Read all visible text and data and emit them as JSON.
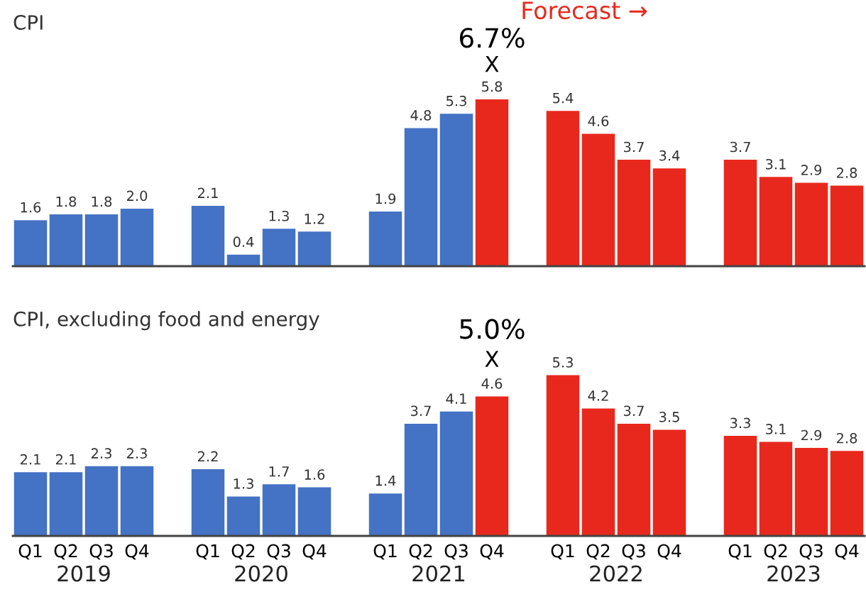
{
  "chart_data": [
    {
      "type": "bar",
      "title": "CPI",
      "categories": [
        null,
        null,
        null,
        null,
        null,
        null,
        null,
        null,
        null,
        null,
        null,
        null,
        null,
        null,
        null,
        null,
        null,
        null,
        null,
        null
      ],
      "values": [
        1.6,
        1.8,
        1.8,
        2.0,
        2.1,
        0.4,
        1.3,
        1.2,
        1.9,
        4.8,
        5.3,
        5.8,
        5.4,
        4.6,
        3.7,
        3.4,
        3.7,
        3.1,
        2.9,
        2.8
      ],
      "colors": [
        "#4472c4",
        "#4472c4",
        "#4472c4",
        "#4472c4",
        "#4472c4",
        "#4472c4",
        "#4472c4",
        "#4472c4",
        "#4472c4",
        "#4472c4",
        "#4472c4",
        "#e8281c",
        "#e8281c",
        "#e8281c",
        "#e8281c",
        "#e8281c",
        "#e8281c",
        "#e8281c",
        "#e8281c",
        "#e8281c"
      ],
      "value_labels": [
        "1.6",
        "1.8",
        "1.8",
        "2.0",
        "2.1",
        "0.4",
        "1.3",
        "1.2",
        "1.9",
        "4.8",
        "5.3",
        "5.8",
        "5.4",
        "4.6",
        "3.7",
        "3.4",
        "3.7",
        "3.1",
        "2.9",
        "2.8"
      ],
      "tick_labels": false,
      "grid": false,
      "legend": false,
      "annotations": [
        "Forecast →",
        "6.7%",
        "X"
      ]
    },
    {
      "type": "bar",
      "title": "CPI, excluding food and energy",
      "categories": [
        "Q1",
        "Q2",
        "Q3",
        "Q4",
        "Q1",
        "Q2",
        "Q3",
        "Q4",
        "Q1",
        "Q2",
        "Q3",
        "Q4",
        "Q1",
        "Q2",
        "Q3",
        "Q4",
        "Q1",
        "Q2",
        "Q3",
        "Q4"
      ],
      "values": [
        2.1,
        2.1,
        2.3,
        2.3,
        2.2,
        1.3,
        1.7,
        1.6,
        1.4,
        3.7,
        4.1,
        4.6,
        5.3,
        4.2,
        3.7,
        3.5,
        3.3,
        3.1,
        2.9,
        2.8
      ],
      "colors": [
        "#4472c4",
        "#4472c4",
        "#4472c4",
        "#4472c4",
        "#4472c4",
        "#4472c4",
        "#4472c4",
        "#4472c4",
        "#4472c4",
        "#4472c4",
        "#4472c4",
        "#e8281c",
        "#e8281c",
        "#e8281c",
        "#e8281c",
        "#e8281c",
        "#e8281c",
        "#e8281c",
        "#e8281c",
        "#e8281c"
      ],
      "data_labels": true,
      "tick_labels": "x",
      "grid": false,
      "legend": false,
      "annotations": [
        "2019",
        "2020",
        "2021",
        "2022",
        "2023",
        "5.0%",
        "X"
      ]
    }
  ]
}
